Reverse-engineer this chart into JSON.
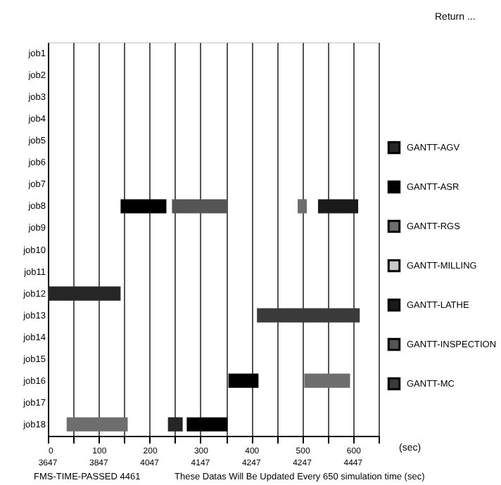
{
  "chart_data": {
    "type": "bar",
    "orientation": "horizontal",
    "xlabel": "(sec)",
    "categories": [
      "job1",
      "job2",
      "job3",
      "job4",
      "job5",
      "job6",
      "job7",
      "job8",
      "job9",
      "job10",
      "job11",
      "job12",
      "job13",
      "job14",
      "job15",
      "job16",
      "job17",
      "job18"
    ],
    "series": [
      {
        "name": "GANTT-AGV",
        "color": "#262626",
        "values": [
          null,
          null,
          null,
          null,
          null,
          null,
          null,
          null,
          null,
          null,
          null,
          143,
          null,
          null,
          null,
          null,
          null,
          29
        ],
        "base": [
          null,
          null,
          null,
          null,
          null,
          null,
          null,
          null,
          null,
          null,
          null,
          0,
          null,
          null,
          null,
          null,
          null,
          236
        ]
      },
      {
        "name": "GANTT-ASR",
        "color": "#000000",
        "values": [
          null,
          null,
          null,
          null,
          null,
          null,
          null,
          90,
          null,
          null,
          null,
          null,
          null,
          null,
          null,
          59,
          null,
          80
        ],
        "base": [
          null,
          null,
          null,
          null,
          null,
          null,
          null,
          143,
          null,
          null,
          null,
          null,
          null,
          null,
          null,
          355,
          null,
          273
        ]
      },
      {
        "name": "GANTT-RGS",
        "color": "#6e6e6e",
        "values": [
          null,
          null,
          null,
          null,
          null,
          null,
          null,
          18,
          null,
          null,
          null,
          null,
          null,
          null,
          null,
          90,
          null,
          120
        ],
        "base": [
          null,
          null,
          null,
          null,
          null,
          null,
          null,
          491,
          null,
          null,
          null,
          null,
          null,
          null,
          null,
          504,
          null,
          37
        ]
      },
      {
        "name": "GANTT-MILLING",
        "color": "#c8c8c8",
        "values": [
          null,
          null,
          null,
          null,
          null,
          null,
          null,
          null,
          null,
          null,
          null,
          null,
          null,
          null,
          null,
          null,
          null,
          null
        ],
        "base": [
          null,
          null,
          null,
          null,
          null,
          null,
          null,
          null,
          null,
          null,
          null,
          null,
          null,
          null,
          null,
          null,
          null,
          null
        ]
      },
      {
        "name": "GANTT-LATHE",
        "color": "#1a1a1a",
        "values": [
          null,
          null,
          null,
          null,
          null,
          null,
          null,
          79,
          null,
          null,
          null,
          null,
          null,
          null,
          null,
          null,
          null,
          null
        ],
        "base": [
          null,
          null,
          null,
          null,
          null,
          null,
          null,
          531,
          null,
          null,
          null,
          null,
          null,
          null,
          null,
          null,
          null,
          null
        ]
      },
      {
        "name": "GANTT-INSPECTION",
        "color": "#555555",
        "values": [
          null,
          null,
          null,
          null,
          null,
          null,
          null,
          109,
          null,
          null,
          null,
          null,
          null,
          null,
          null,
          null,
          null,
          null
        ],
        "base": [
          null,
          null,
          null,
          null,
          null,
          null,
          null,
          244,
          null,
          null,
          null,
          null,
          null,
          null,
          null,
          null,
          null,
          null
        ]
      },
      {
        "name": "GANTT-MC",
        "color": "#3a3a3a",
        "values": [
          null,
          null,
          null,
          null,
          null,
          null,
          null,
          null,
          null,
          null,
          null,
          null,
          202,
          null,
          null,
          null,
          null,
          null
        ],
        "base": [
          null,
          null,
          null,
          null,
          null,
          null,
          null,
          null,
          null,
          null,
          null,
          null,
          411,
          null,
          null,
          null,
          null,
          null
        ]
      }
    ],
    "xlim": [
      0,
      650
    ],
    "xticks": [
      0,
      {
        "value": 50,
        "label": null
      },
      100,
      {
        "value": 150,
        "label": null
      },
      200,
      {
        "value": 250,
        "label": null
      },
      300,
      {
        "value": 350,
        "label": null
      },
      400,
      {
        "value": 450,
        "label": null
      },
      500,
      {
        "value": 550,
        "label": null
      },
      600,
      {
        "value": 650,
        "label": null
      }
    ],
    "grid": "x",
    "legend": "right",
    "annotations": [
      "Return ...",
      "FMS-TIME-PASSED  4461",
      "These Datas Will Be Updated Every 650 simulation time (sec)",
      "3647",
      "3847",
      "4047",
      "4147",
      "4247",
      "4247",
      "4447"
    ]
  }
}
